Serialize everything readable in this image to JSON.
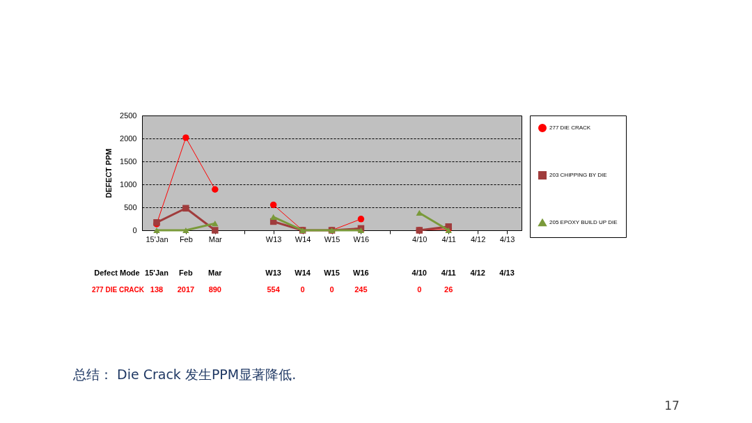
{
  "chart_data": {
    "type": "line",
    "ylabel": "DEFECT PPM",
    "categories": [
      "15'Jan",
      "Feb",
      "Mar",
      null,
      "W13",
      "W14",
      "W15",
      "W16",
      null,
      "4/10",
      "4/11",
      "4/12",
      "4/13"
    ],
    "series": [
      {
        "name": "277 DIE CRACK",
        "color": "#ff0000",
        "marker": "circle",
        "values": [
          138,
          2017,
          890,
          null,
          554,
          0,
          0,
          245,
          null,
          0,
          26,
          null,
          null
        ],
        "value_labels": [
          "138",
          "2017",
          "890",
          null,
          "554",
          "0",
          "0",
          "245",
          null,
          "0",
          "26",
          null,
          null
        ]
      },
      {
        "name": "203 CHIPPING BY DIE",
        "color": "#a03c3c",
        "marker": "square",
        "values": [
          170,
          480,
          0,
          null,
          190,
          0,
          0,
          40,
          null,
          0,
          80,
          null,
          null
        ]
      },
      {
        "name": "205 EPOXY BUILD UP DIE",
        "color": "#7a9a3a",
        "marker": "triangle",
        "values": [
          0,
          0,
          150,
          null,
          290,
          0,
          0,
          0,
          null,
          380,
          0,
          null,
          null
        ]
      }
    ],
    "ylim": [
      0,
      2500
    ],
    "yticks": [
      0,
      500,
      1000,
      1500,
      2000,
      2500
    ],
    "grid": "y",
    "legend": "right",
    "annotations": [
      "Defect Mode",
      "总结：  Die Crack 发生PPM显著降低.",
      "17"
    ]
  }
}
